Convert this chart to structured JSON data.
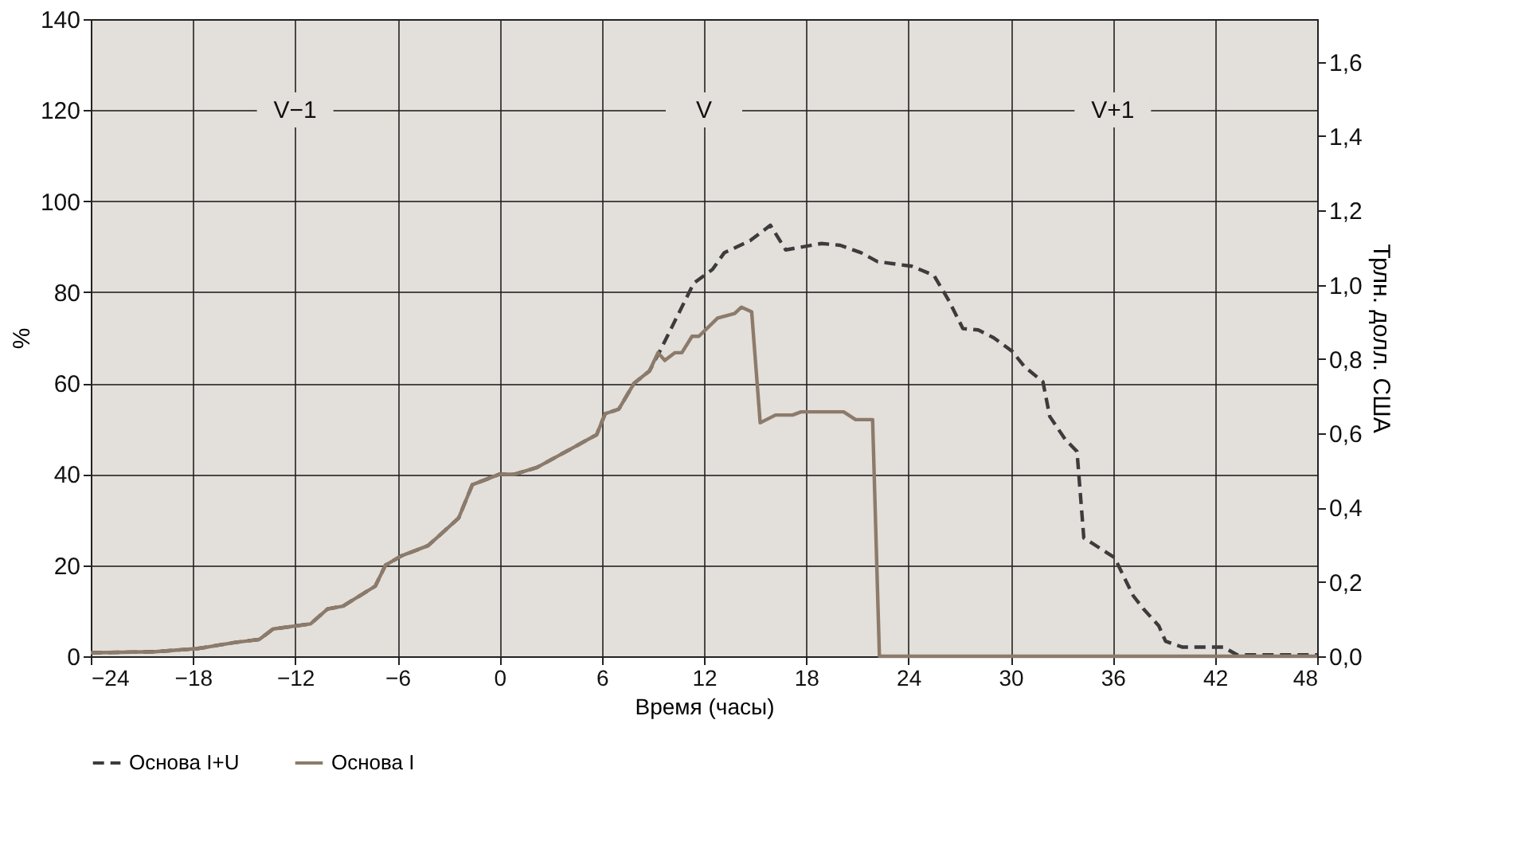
{
  "chart_data": {
    "type": "line",
    "xlabel": "Время (часы)",
    "ylabel": "%",
    "y2label": "Трлн. долл. США",
    "xlim": [
      -24,
      48
    ],
    "xticks": [
      {
        "value": -24,
        "label": "−24"
      },
      {
        "value": -18,
        "label": "−18"
      },
      {
        "value": -12,
        "label": "−12"
      },
      {
        "value": -6,
        "label": "−6"
      },
      0,
      6,
      12,
      18,
      24,
      30,
      36,
      42,
      48
    ],
    "ylim": [
      0,
      140
    ],
    "yticks": [
      0,
      20,
      40,
      60,
      80,
      100,
      120,
      140
    ],
    "y2lim": [
      0,
      1.715
    ],
    "y2ticks": [
      {
        "value": 0,
        "label": "0,0"
      },
      {
        "value": 0.2,
        "label": "0,2"
      },
      {
        "value": 0.4,
        "label": "0,4"
      },
      {
        "value": 0.6,
        "label": "0,6"
      },
      {
        "value": 0.8,
        "label": "0,8"
      },
      {
        "value": 1.0,
        "label": "1,0"
      },
      {
        "value": 1.2,
        "label": "1,2"
      },
      {
        "value": 1.4,
        "label": "1,4"
      },
      {
        "value": 1.6,
        "label": "1,6"
      }
    ],
    "grid": true,
    "legend": "bottom",
    "annotations": [
      "V−1",
      "V",
      "V+1"
    ],
    "series": [
      {
        "name": "Основа I+U",
        "color": "#3c3c3c",
        "line_style": "dashed",
        "x": [
          -24,
          -23.6,
          -20.2,
          -17.7,
          -15.6,
          -14.1,
          -13.3,
          -11.1,
          -10.1,
          -9.2,
          -7.3,
          -6.7,
          -5.8,
          -4.2,
          -3.6,
          -2.4,
          -1.6,
          0.0,
          0.9,
          2.2,
          4.4,
          5.7,
          6.2,
          7.0,
          7.9,
          8.8,
          9.5,
          11.4,
          12.5,
          13.2,
          14.7,
          15.9,
          16.8,
          18.9,
          20.0,
          21.2,
          22.2,
          24.2,
          25.5,
          26.4,
          27.2,
          28.1,
          29.0,
          30.1,
          30.8,
          31.9,
          32.3,
          33.2,
          33.9,
          34.3,
          36.1,
          37.2,
          37.8,
          38.7,
          39.1,
          40.1,
          42.5,
          43.3,
          48
        ],
        "values": [
          0.8,
          0.8,
          1,
          1.7,
          3,
          3.7,
          6,
          7.1,
          10.4,
          11,
          15.4,
          20,
          22,
          24.3,
          26.3,
          30.4,
          37.7,
          40,
          40,
          41.5,
          46,
          48.7,
          53.3,
          54.3,
          60,
          62.7,
          67.7,
          82,
          85,
          88.7,
          91.3,
          94.7,
          89.3,
          90.7,
          90.3,
          88.7,
          86.7,
          85.7,
          83.7,
          78,
          72,
          71.7,
          70,
          67,
          63.7,
          60.3,
          52.7,
          47.7,
          45,
          26,
          21.7,
          13.3,
          10.4,
          6.7,
          3.3,
          2,
          2,
          0.3,
          0.3
        ]
      },
      {
        "name": "Основа I",
        "color": "#8c7b6b",
        "line_style": "solid",
        "x": [
          -24,
          -23.6,
          -20.2,
          -17.7,
          -15.6,
          -14.1,
          -13.3,
          -11.1,
          -10.1,
          -9.2,
          -7.3,
          -6.7,
          -5.8,
          -4.2,
          -3.6,
          -2.4,
          -1.6,
          0.0,
          0.9,
          2.2,
          4.4,
          5.7,
          6.2,
          7.0,
          7.9,
          8.8,
          9.3,
          9.7,
          10.3,
          10.7,
          11.3,
          11.7,
          12.8,
          13.8,
          14.2,
          14.8,
          15.3,
          16.2,
          17.2,
          17.7,
          20.2,
          20.9,
          21.9,
          22.3,
          48
        ],
        "values": [
          0.8,
          0.8,
          1,
          1.7,
          3,
          3.7,
          6,
          7.1,
          10.4,
          11,
          15.4,
          20,
          22,
          24.3,
          26.3,
          30.4,
          37.7,
          40,
          40,
          41.5,
          46,
          48.7,
          53.3,
          54.3,
          60,
          62.7,
          66.7,
          65,
          66.7,
          66.7,
          70.3,
          70.3,
          74.3,
          75.3,
          76.7,
          75.7,
          51.3,
          53,
          53,
          53.7,
          53.7,
          52,
          52,
          0,
          0
        ]
      }
    ]
  }
}
